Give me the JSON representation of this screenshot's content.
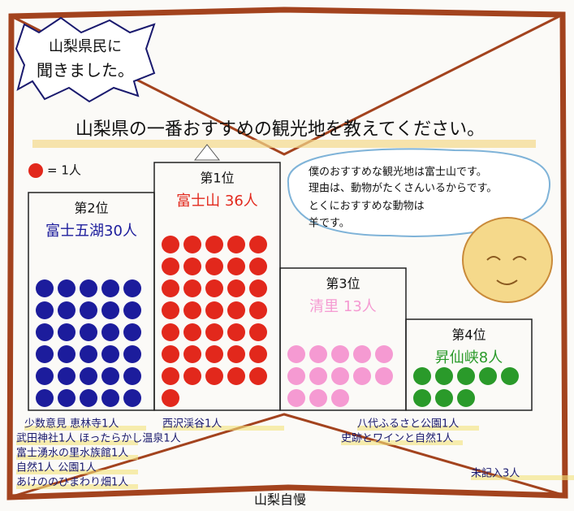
{
  "badge": [
    "山梨県民に",
    "聞きました。"
  ],
  "title": "山梨県の一番おすすめの観光地を教えてください。",
  "legend": {
    "label": "= 1人",
    "color": "#e2281c"
  },
  "ranks": [
    {
      "rank": "第2位",
      "label": "富士五湖30人",
      "count": 30,
      "color": "#1c1c9c"
    },
    {
      "rank": "第1位",
      "label": "富士山 36人",
      "count": 36,
      "color": "#e2281c"
    },
    {
      "rank": "第3位",
      "label": "清里 13人",
      "count": 13,
      "color": "#f59ad2"
    },
    {
      "rank": "第4位",
      "label": "昇仙峡8人",
      "count": 8,
      "color": "#2a9a2a"
    }
  ],
  "speech": [
    "僕のおすすめな観光地は富士山です。",
    "理由は、動物がたくさんいるからです。",
    "とくにおすすめな動物は",
    "羊です。"
  ],
  "minority": [
    "少数意見 恵林寺1人",
    "西沢渓谷1人",
    "八代ふるさと公園1人",
    "武田神社1人 ほったらかし温泉1人",
    "史跡とワインと自然1人",
    "富士湧水の里水族館1人",
    "自然1人 公園1人",
    "あけののひまわり畑1人",
    "未記入3人"
  ],
  "footer": "山梨自慢"
}
